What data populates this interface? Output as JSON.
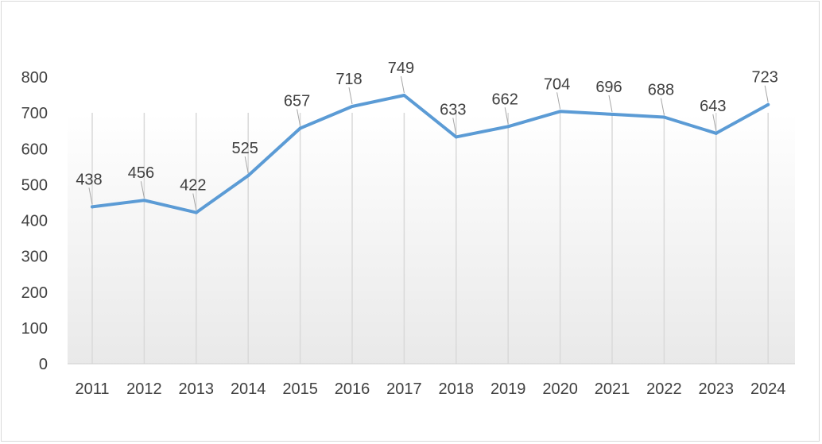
{
  "chart_data": {
    "type": "line",
    "title": "",
    "xlabel": "",
    "ylabel": "",
    "categories": [
      "2011",
      "2012",
      "2013",
      "2014",
      "2015",
      "2016",
      "2017",
      "2018",
      "2019",
      "2020",
      "2021",
      "2022",
      "2023",
      "2024"
    ],
    "values": [
      438,
      456,
      422,
      525,
      657,
      718,
      749,
      633,
      662,
      704,
      696,
      688,
      643,
      723
    ],
    "ylim": [
      0,
      800
    ],
    "yticks": [
      0,
      100,
      200,
      300,
      400,
      500,
      600,
      700,
      800
    ],
    "series_color": "#5b9bd5",
    "grid": "vertical",
    "legend": "none",
    "data_labels": true
  }
}
